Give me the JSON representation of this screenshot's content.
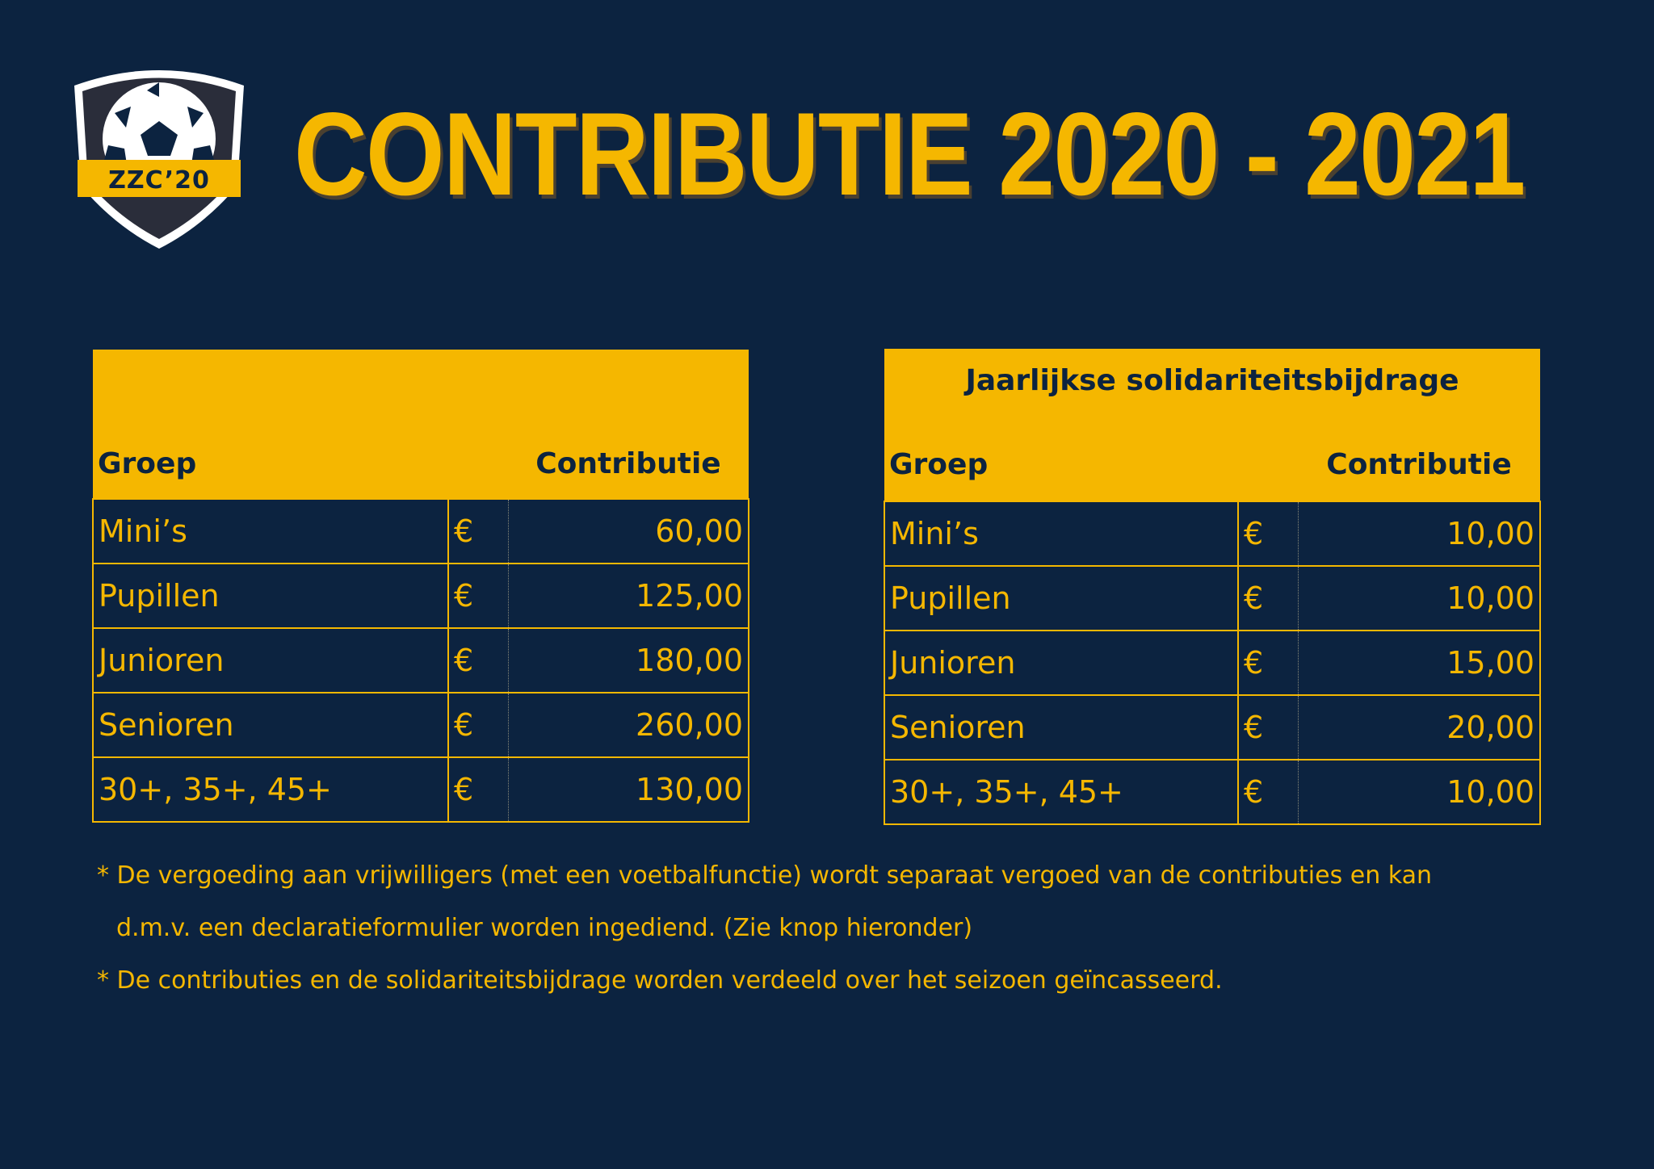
{
  "logo": {
    "text": "ZZC’20"
  },
  "title": "CONTRIBUTIE 2020 - 2021",
  "table_left": {
    "header": {
      "group": "Groep",
      "amount": "Contributie"
    },
    "rows": [
      {
        "group": "Mini’s",
        "currency": "€",
        "amount": "60,00"
      },
      {
        "group": "Pupillen",
        "currency": "€",
        "amount": "125,00"
      },
      {
        "group": "Junioren",
        "currency": "€",
        "amount": "180,00"
      },
      {
        "group": "Senioren",
        "currency": "€",
        "amount": "260,00"
      },
      {
        "group": "30+, 35+, 45+",
        "currency": "€",
        "amount": "130,00"
      }
    ]
  },
  "table_right": {
    "super_header": "Jaarlijkse solidariteitsbijdrage",
    "header": {
      "group": "Groep",
      "amount": "Contributie"
    },
    "rows": [
      {
        "group": "Mini’s",
        "currency": "€",
        "amount": "10,00"
      },
      {
        "group": "Pupillen",
        "currency": "€",
        "amount": "10,00"
      },
      {
        "group": "Junioren",
        "currency": "€",
        "amount": "15,00"
      },
      {
        "group": "Senioren",
        "currency": "€",
        "amount": "20,00"
      },
      {
        "group": "30+, 35+, 45+",
        "currency": "€",
        "amount": "10,00"
      }
    ]
  },
  "notes": [
    "* De vergoeding aan vrijwilligers (met een voetbalfunctie) wordt separaat vergoed van de contributies en kan",
    "d.m.v. een declaratieformulier worden ingediend. (Zie knop hieronder)",
    "* De contributies en de solidariteitsbijdrage worden verdeeld over het seizoen geïncasseerd."
  ],
  "colors": {
    "background": "#0c2340",
    "accent": "#f5b700"
  }
}
